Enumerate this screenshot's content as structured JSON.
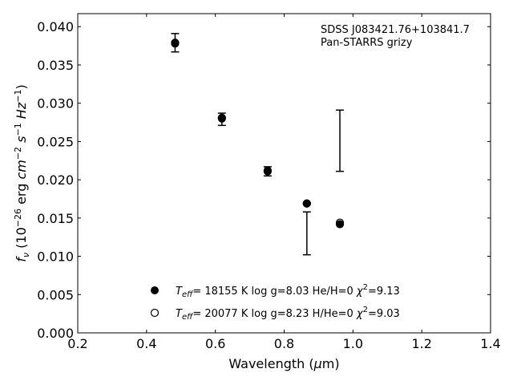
{
  "chart_data": {
    "type": "scatter",
    "xlabel": "Wavelength (μm)",
    "ylabel": "f_ν (10^-26 erg cm^-2 s^-1 Hz^-1)",
    "xlim": [
      0.2,
      1.4
    ],
    "ylim": [
      0.0,
      0.0417
    ],
    "xticks": [
      "0.2",
      "0.4",
      "0.6",
      "0.8",
      "1.0",
      "1.2",
      "1.4"
    ],
    "yticks": [
      "0.000",
      "0.005",
      "0.010",
      "0.015",
      "0.020",
      "0.025",
      "0.030",
      "0.035",
      "0.040"
    ],
    "grid": false,
    "annotation": [
      "SDSS J083421.76+103841.7",
      "Pan-STARRS grizy"
    ],
    "observed": [
      {
        "x": 0.483,
        "y": 0.0379,
        "yerr": 0.0012
      },
      {
        "x": 0.619,
        "y": 0.0279,
        "yerr": 0.0008
      },
      {
        "x": 0.752,
        "y": 0.0211,
        "yerr": 0.0006
      },
      {
        "x": 0.866,
        "y": 0.013,
        "yerr": 0.0028
      },
      {
        "x": 0.962,
        "y": 0.0251,
        "yerr": 0.004
      }
    ],
    "series": [
      {
        "name": "T_eff= 18155 K  log g=8.03  He/H=0  χ²=9.13",
        "marker": "filled",
        "points": [
          {
            "x": 0.483,
            "y": 0.0378
          },
          {
            "x": 0.619,
            "y": 0.028
          },
          {
            "x": 0.752,
            "y": 0.0212
          },
          {
            "x": 0.866,
            "y": 0.0169
          },
          {
            "x": 0.962,
            "y": 0.0142
          }
        ]
      },
      {
        "name": "T_eff= 20077 K  log g=8.23  H/He=0  χ²=9.03",
        "marker": "open",
        "points": [
          {
            "x": 0.483,
            "y": 0.0379
          },
          {
            "x": 0.619,
            "y": 0.0281
          },
          {
            "x": 0.752,
            "y": 0.0211
          },
          {
            "x": 0.866,
            "y": 0.0169
          },
          {
            "x": 0.962,
            "y": 0.0144
          }
        ]
      }
    ],
    "legend": {
      "placement": "lower-center",
      "entries": [
        {
          "marker": "filled",
          "teff": "18155 K",
          "logg": "log g=8.03",
          "comp": "He/H=0",
          "chi2": "=9.13"
        },
        {
          "marker": "open",
          "teff": "20077 K",
          "logg": "log g=8.23",
          "comp": "H/He=0",
          "chi2": "=9.03"
        }
      ]
    }
  }
}
